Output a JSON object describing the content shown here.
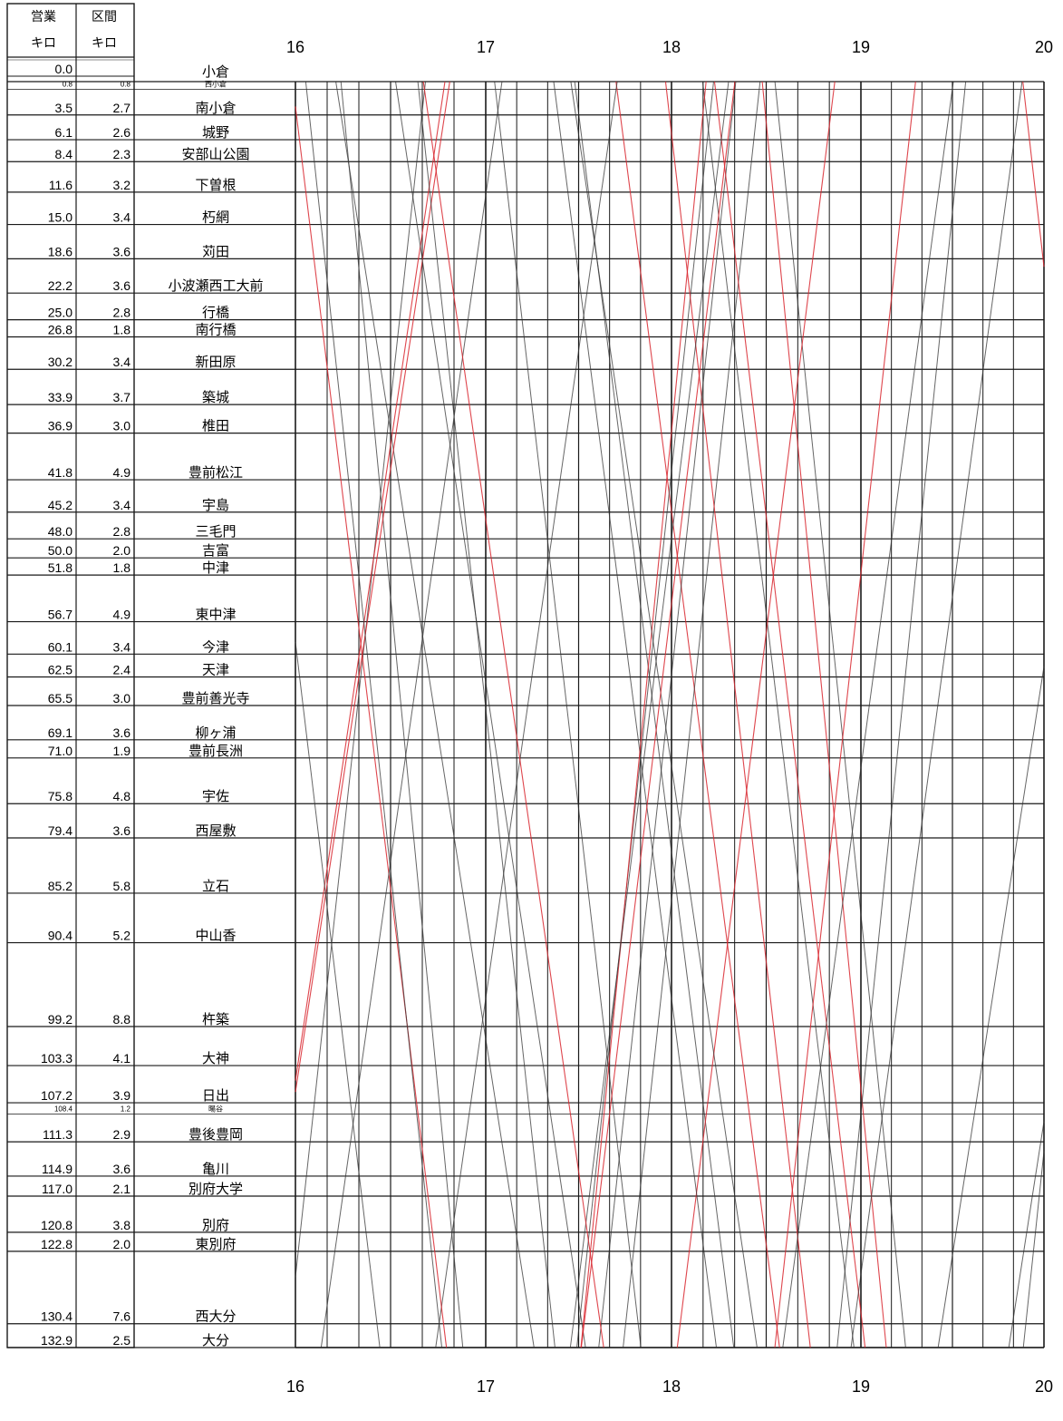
{
  "header": {
    "col_kilo_line1": "営業",
    "col_kilo_line2": "キロ",
    "col_interval_line1": "区間",
    "col_interval_line2": "キロ"
  },
  "hours": [
    "16",
    "17",
    "18",
    "19",
    "20"
  ],
  "stations": [
    {
      "km": "0.0",
      "interval": "",
      "name": "小倉"
    },
    {
      "km": "0.8",
      "interval": "0.8",
      "name": "西小倉",
      "minor": true
    },
    {
      "km": "3.5",
      "interval": "2.7",
      "name": "南小倉"
    },
    {
      "km": "6.1",
      "interval": "2.6",
      "name": "城野"
    },
    {
      "km": "8.4",
      "interval": "2.3",
      "name": "安部山公園"
    },
    {
      "km": "11.6",
      "interval": "3.2",
      "name": "下曽根"
    },
    {
      "km": "15.0",
      "interval": "3.4",
      "name": "朽網"
    },
    {
      "km": "18.6",
      "interval": "3.6",
      "name": "苅田"
    },
    {
      "km": "22.2",
      "interval": "3.6",
      "name": "小波瀬西工大前"
    },
    {
      "km": "25.0",
      "interval": "2.8",
      "name": "行橋"
    },
    {
      "km": "26.8",
      "interval": "1.8",
      "name": "南行橋"
    },
    {
      "km": "30.2",
      "interval": "3.4",
      "name": "新田原"
    },
    {
      "km": "33.9",
      "interval": "3.7",
      "name": "築城"
    },
    {
      "km": "36.9",
      "interval": "3.0",
      "name": "椎田"
    },
    {
      "km": "41.8",
      "interval": "4.9",
      "name": "豊前松江"
    },
    {
      "km": "45.2",
      "interval": "3.4",
      "name": "宇島"
    },
    {
      "km": "48.0",
      "interval": "2.8",
      "name": "三毛門"
    },
    {
      "km": "50.0",
      "interval": "2.0",
      "name": "吉富"
    },
    {
      "km": "51.8",
      "interval": "1.8",
      "name": "中津"
    },
    {
      "km": "56.7",
      "interval": "4.9",
      "name": "東中津"
    },
    {
      "km": "60.1",
      "interval": "3.4",
      "name": "今津"
    },
    {
      "km": "62.5",
      "interval": "2.4",
      "name": "天津"
    },
    {
      "km": "65.5",
      "interval": "3.0",
      "name": "豊前善光寺"
    },
    {
      "km": "69.1",
      "interval": "3.6",
      "name": "柳ヶ浦"
    },
    {
      "km": "71.0",
      "interval": "1.9",
      "name": "豊前長洲"
    },
    {
      "km": "75.8",
      "interval": "4.8",
      "name": "宇佐"
    },
    {
      "km": "79.4",
      "interval": "3.6",
      "name": "西屋敷"
    },
    {
      "km": "85.2",
      "interval": "5.8",
      "name": "立石"
    },
    {
      "km": "90.4",
      "interval": "5.2",
      "name": "中山香"
    },
    {
      "km": "99.2",
      "interval": "8.8",
      "name": "杵築"
    },
    {
      "km": "103.3",
      "interval": "4.1",
      "name": "大神"
    },
    {
      "km": "107.2",
      "interval": "3.9",
      "name": "日出"
    },
    {
      "km": "108.4",
      "interval": "1.2",
      "name": "暘谷",
      "minor": true
    },
    {
      "km": "111.3",
      "interval": "2.9",
      "name": "豊後豊岡"
    },
    {
      "km": "114.9",
      "interval": "3.6",
      "name": "亀川"
    },
    {
      "km": "117.0",
      "interval": "2.1",
      "name": "別府大学"
    },
    {
      "km": "120.8",
      "interval": "3.8",
      "name": "別府"
    },
    {
      "km": "122.8",
      "interval": "2.0",
      "name": "東別府"
    },
    {
      "km": "130.4",
      "interval": "7.6",
      "name": "西大分"
    },
    {
      "km": "132.9",
      "interval": "2.5",
      "name": "大分"
    }
  ],
  "line_colors": {
    "grid": "#1a1a1a",
    "train_black": "#333333",
    "train_red": "#d9262e"
  }
}
